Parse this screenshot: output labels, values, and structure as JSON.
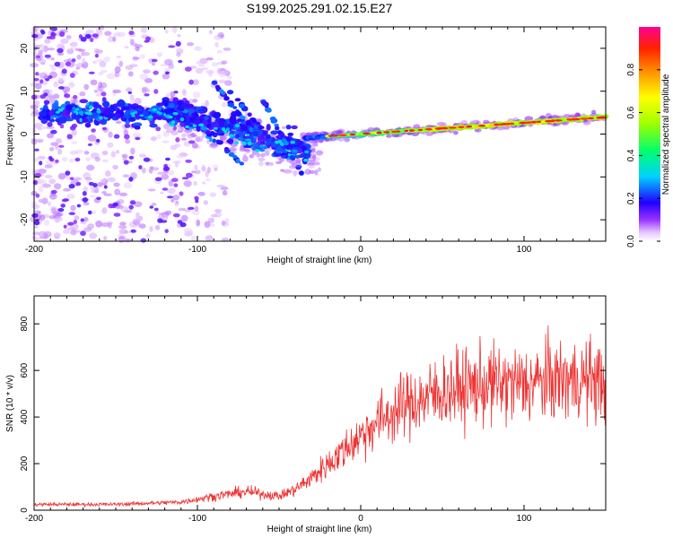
{
  "title": "S199.2025.291.02.15.E27",
  "chart_data": [
    {
      "type": "heatmap",
      "xlabel": "Height of straight line (km)",
      "ylabel": "Frequency (Hz)",
      "xlim": [
        -200,
        150
      ],
      "ylim": [
        -25,
        25
      ],
      "xticks": [
        -200,
        -100,
        0,
        100
      ],
      "yticks": [
        -20,
        -10,
        0,
        10,
        20
      ],
      "colorbar": {
        "label": "Normalized spectral amplitude",
        "range": [
          0,
          1
        ],
        "ticks": [
          0.0,
          0.2,
          0.4,
          0.6,
          0.8
        ]
      },
      "features": [
        {
          "name": "scattered noise",
          "x_range": [
            -200,
            -100
          ],
          "freq_range": [
            -25,
            25
          ]
        },
        {
          "name": "main ridge",
          "x_start": -35,
          "x_end": 150,
          "freq_start": -2,
          "freq_end": 4
        }
      ]
    },
    {
      "type": "line",
      "xlabel": "Height of straight line (km)",
      "ylabel": "SNR (10 * v/v)",
      "xlim": [
        -200,
        150
      ],
      "ylim": [
        0,
        920
      ],
      "xticks": [
        -200,
        -100,
        0,
        100
      ],
      "yticks": [
        0,
        200,
        400,
        600,
        800
      ],
      "color": "#ee3333",
      "envelope": {
        "x": [
          -200,
          -150,
          -110,
          -90,
          -70,
          -50,
          -40,
          -30,
          -20,
          -10,
          0,
          10,
          20,
          30,
          40,
          50,
          60,
          80,
          100,
          120,
          140,
          150
        ],
        "y": [
          25,
          25,
          35,
          60,
          80,
          60,
          90,
          140,
          200,
          260,
          320,
          380,
          420,
          460,
          480,
          510,
          520,
          540,
          540,
          560,
          560,
          560
        ]
      }
    }
  ]
}
